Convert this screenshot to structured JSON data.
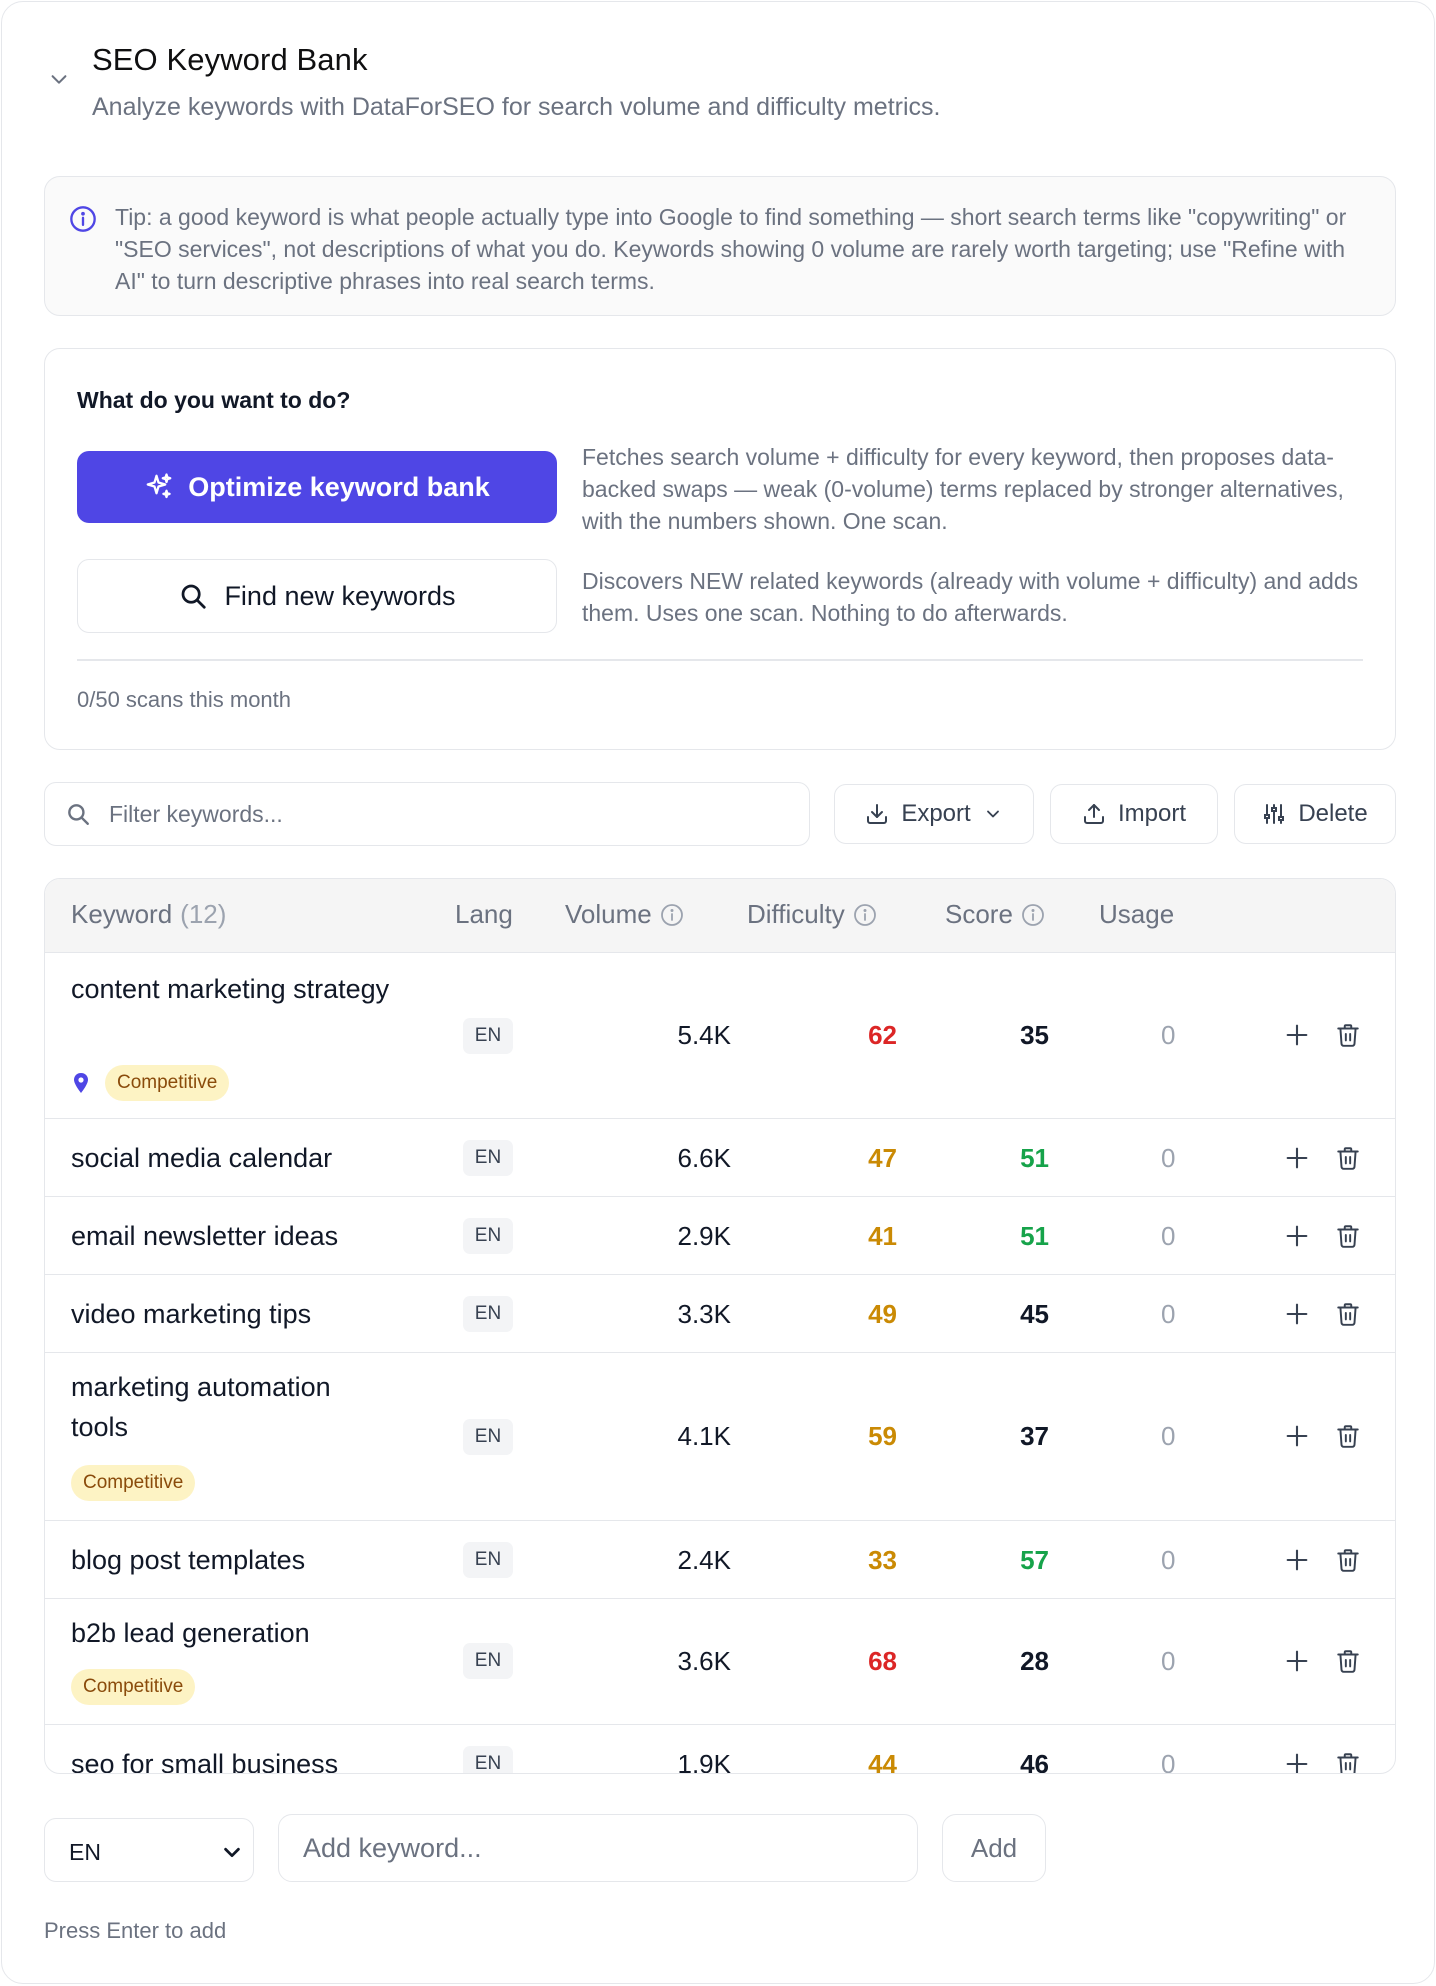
{
  "header": {
    "title": "SEO Keyword Bank",
    "subtitle": "Analyze keywords with DataForSEO for search volume and difficulty metrics."
  },
  "tip": {
    "text": "Tip: a good keyword is what people actually type into Google to find something — short search terms like \"copywriting\" or \"SEO services\", not descriptions of what you do. Keywords showing 0 volume are rarely worth targeting; use \"Refine with AI\" to turn descriptive phrases into real search terms."
  },
  "actions": {
    "question": "What do you want to do?",
    "optimize_label": "Optimize keyword bank",
    "optimize_desc": "Fetches search volume + difficulty for every keyword, then proposes data-backed swaps — weak (0-volume) terms replaced by stronger alternatives, with the numbers shown. One scan.",
    "find_label": "Find new keywords",
    "find_desc": "Discovers NEW related keywords (already with volume + difficulty) and adds them. Uses one scan. Nothing to do afterwards.",
    "scans": "0/50 scans this month"
  },
  "toolbar": {
    "filter_placeholder": "Filter keywords...",
    "export_label": "Export",
    "import_label": "Import",
    "delete_label": "Delete"
  },
  "table": {
    "headers": {
      "keyword": "Keyword",
      "count": "(12)",
      "lang": "Lang",
      "volume": "Volume",
      "difficulty": "Difficulty",
      "score": "Score",
      "usage": "Usage"
    },
    "rows": [
      {
        "keyword": "content marketing strategy",
        "lang": "EN",
        "volume": "5.4K",
        "difficulty": "62",
        "score": "35",
        "usage": "0",
        "badge": "Competitive",
        "pinned": true,
        "diff_color": "#dc2626",
        "score_color": "#111827"
      },
      {
        "keyword": "social media calendar",
        "lang": "EN",
        "volume": "6.6K",
        "difficulty": "47",
        "score": "51",
        "usage": "0",
        "diff_color": "#ca8a04",
        "score_color": "#16a34a"
      },
      {
        "keyword": "email newsletter ideas",
        "lang": "EN",
        "volume": "2.9K",
        "difficulty": "41",
        "score": "51",
        "usage": "0",
        "diff_color": "#ca8a04",
        "score_color": "#16a34a"
      },
      {
        "keyword": "video marketing tips",
        "lang": "EN",
        "volume": "3.3K",
        "difficulty": "49",
        "score": "45",
        "usage": "0",
        "diff_color": "#ca8a04",
        "score_color": "#111827"
      },
      {
        "keyword": "marketing automation tools",
        "lang": "EN",
        "volume": "4.1K",
        "difficulty": "59",
        "score": "37",
        "usage": "0",
        "badge": "Competitive",
        "diff_color": "#ca8a04",
        "score_color": "#111827"
      },
      {
        "keyword": "blog post templates",
        "lang": "EN",
        "volume": "2.4K",
        "difficulty": "33",
        "score": "57",
        "usage": "0",
        "diff_color": "#ca8a04",
        "score_color": "#16a34a"
      },
      {
        "keyword": "b2b lead generation",
        "lang": "EN",
        "volume": "3.6K",
        "difficulty": "68",
        "score": "28",
        "usage": "0",
        "badge": "Competitive",
        "diff_color": "#dc2626",
        "score_color": "#111827"
      },
      {
        "keyword": "seo for small business",
        "lang": "EN",
        "volume": "1.9K",
        "difficulty": "44",
        "score": "46",
        "usage": "0",
        "diff_color": "#ca8a04",
        "score_color": "#111827"
      }
    ]
  },
  "add": {
    "lang_value": "EN",
    "placeholder": "Add keyword...",
    "button": "Add",
    "hint": "Press Enter to add"
  },
  "colors": {
    "accent": "#4f46e5",
    "red": "#dc2626",
    "amber": "#ca8a04",
    "green": "#16a34a",
    "badge_bg": "#fdf3c4"
  }
}
